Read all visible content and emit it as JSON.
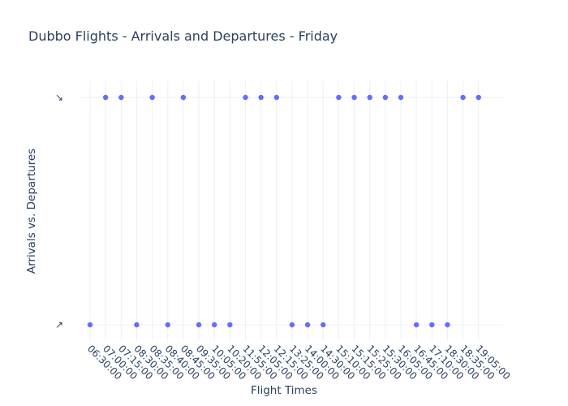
{
  "chart_data": {
    "type": "scatter",
    "title": "Dubbo Flights - Arrivals and Departures - Friday",
    "xlabel": "Flight Times",
    "ylabel": "Arrivals vs. Departures",
    "categories": [
      "06:30:00",
      "07:00:00",
      "07:15:00",
      "08:30:00",
      "08:35:00",
      "08:40:00",
      "08:45:00",
      "09:35:00",
      "10:05:00",
      "10:20:00",
      "11:55:00",
      "12:05:00",
      "12:15:00",
      "13:25:00",
      "14:00:00",
      "14:30:00",
      "15:10:00",
      "15:15:00",
      "15:25:00",
      "15:30:00",
      "16:05:00",
      "16:45:00",
      "17:10:00",
      "18:30:00",
      "18:35:00",
      "19:05:00"
    ],
    "y_categories": [
      "↗",
      "↘"
    ],
    "values": [
      "↗",
      "↘",
      "↘",
      "↗",
      "↘",
      "↗",
      "↘",
      "↗",
      "↗",
      "↗",
      "↘",
      "↘",
      "↘",
      "↗",
      "↗",
      "↗",
      "↘",
      "↘",
      "↘",
      "↘",
      "↘",
      "↗",
      "↗",
      "↗",
      "↘",
      "↘"
    ],
    "grid": true,
    "marker_color": "#636efa",
    "grid_color": "#ebf0f8",
    "text_color": "#2a3f5f"
  }
}
